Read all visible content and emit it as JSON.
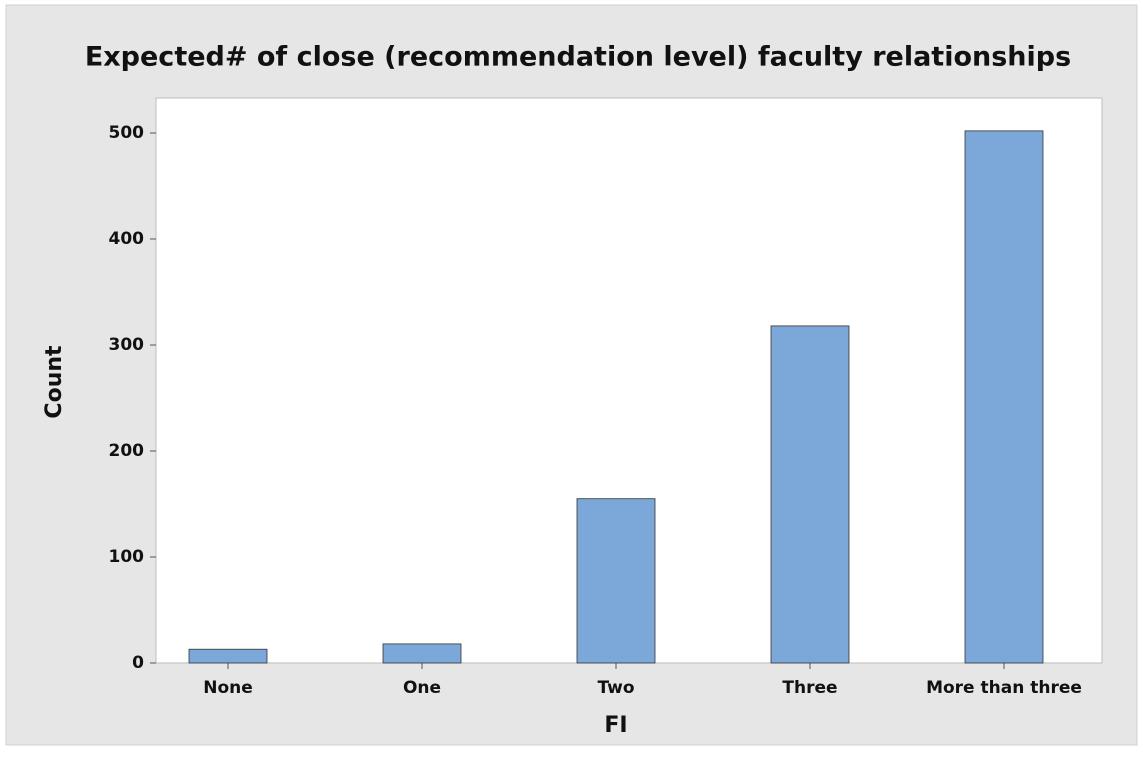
{
  "chart_data": {
    "type": "bar",
    "title": "Expected# of close (recommendation level) faculty relationships",
    "x_label": "FI",
    "y_label": "Count",
    "categories": [
      "None",
      "One",
      "Two",
      "Three",
      "More than three"
    ],
    "values": [
      13,
      18,
      155,
      318,
      502
    ],
    "color": "#7ba7d9",
    "ylim": [
      0,
      533
    ],
    "yticks": [
      0,
      100,
      200,
      300,
      400,
      500
    ],
    "grid": false
  }
}
